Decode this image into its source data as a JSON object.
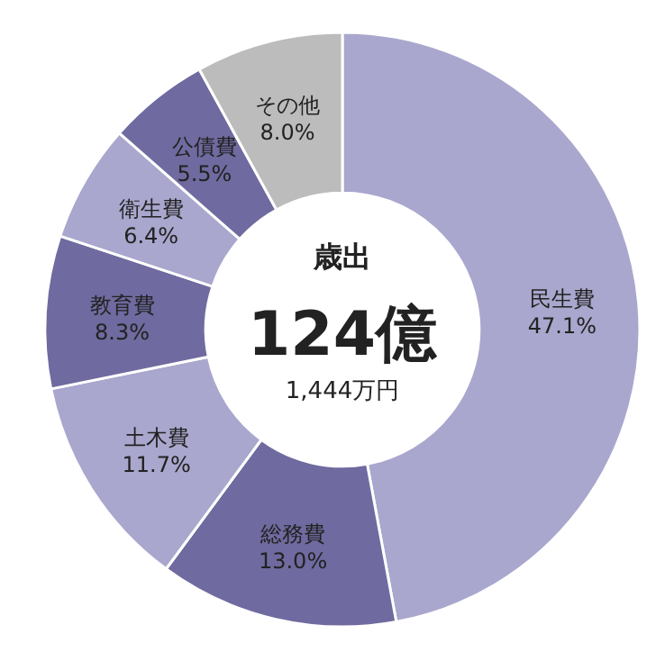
{
  "chart_data": {
    "type": "donut",
    "title": "歳出",
    "annotations": [
      "124億",
      "1,444万円"
    ],
    "categories": [
      "民生費",
      "総務費",
      "土木費",
      "教育費",
      "衛生費",
      "公債費",
      "その他"
    ],
    "values": [
      47.1,
      13.0,
      11.7,
      8.3,
      6.4,
      5.5,
      8.0
    ],
    "value_labels": [
      "47.1%",
      "13.0%",
      "11.7%",
      "8.3%",
      "6.4%",
      "5.5%",
      "8.0%"
    ],
    "colors": [
      "#a9a7cd",
      "#6f6a9f",
      "#a9a7cd",
      "#6f6a9f",
      "#a9a7cd",
      "#6f6a9f",
      "#bcbcbc"
    ]
  }
}
